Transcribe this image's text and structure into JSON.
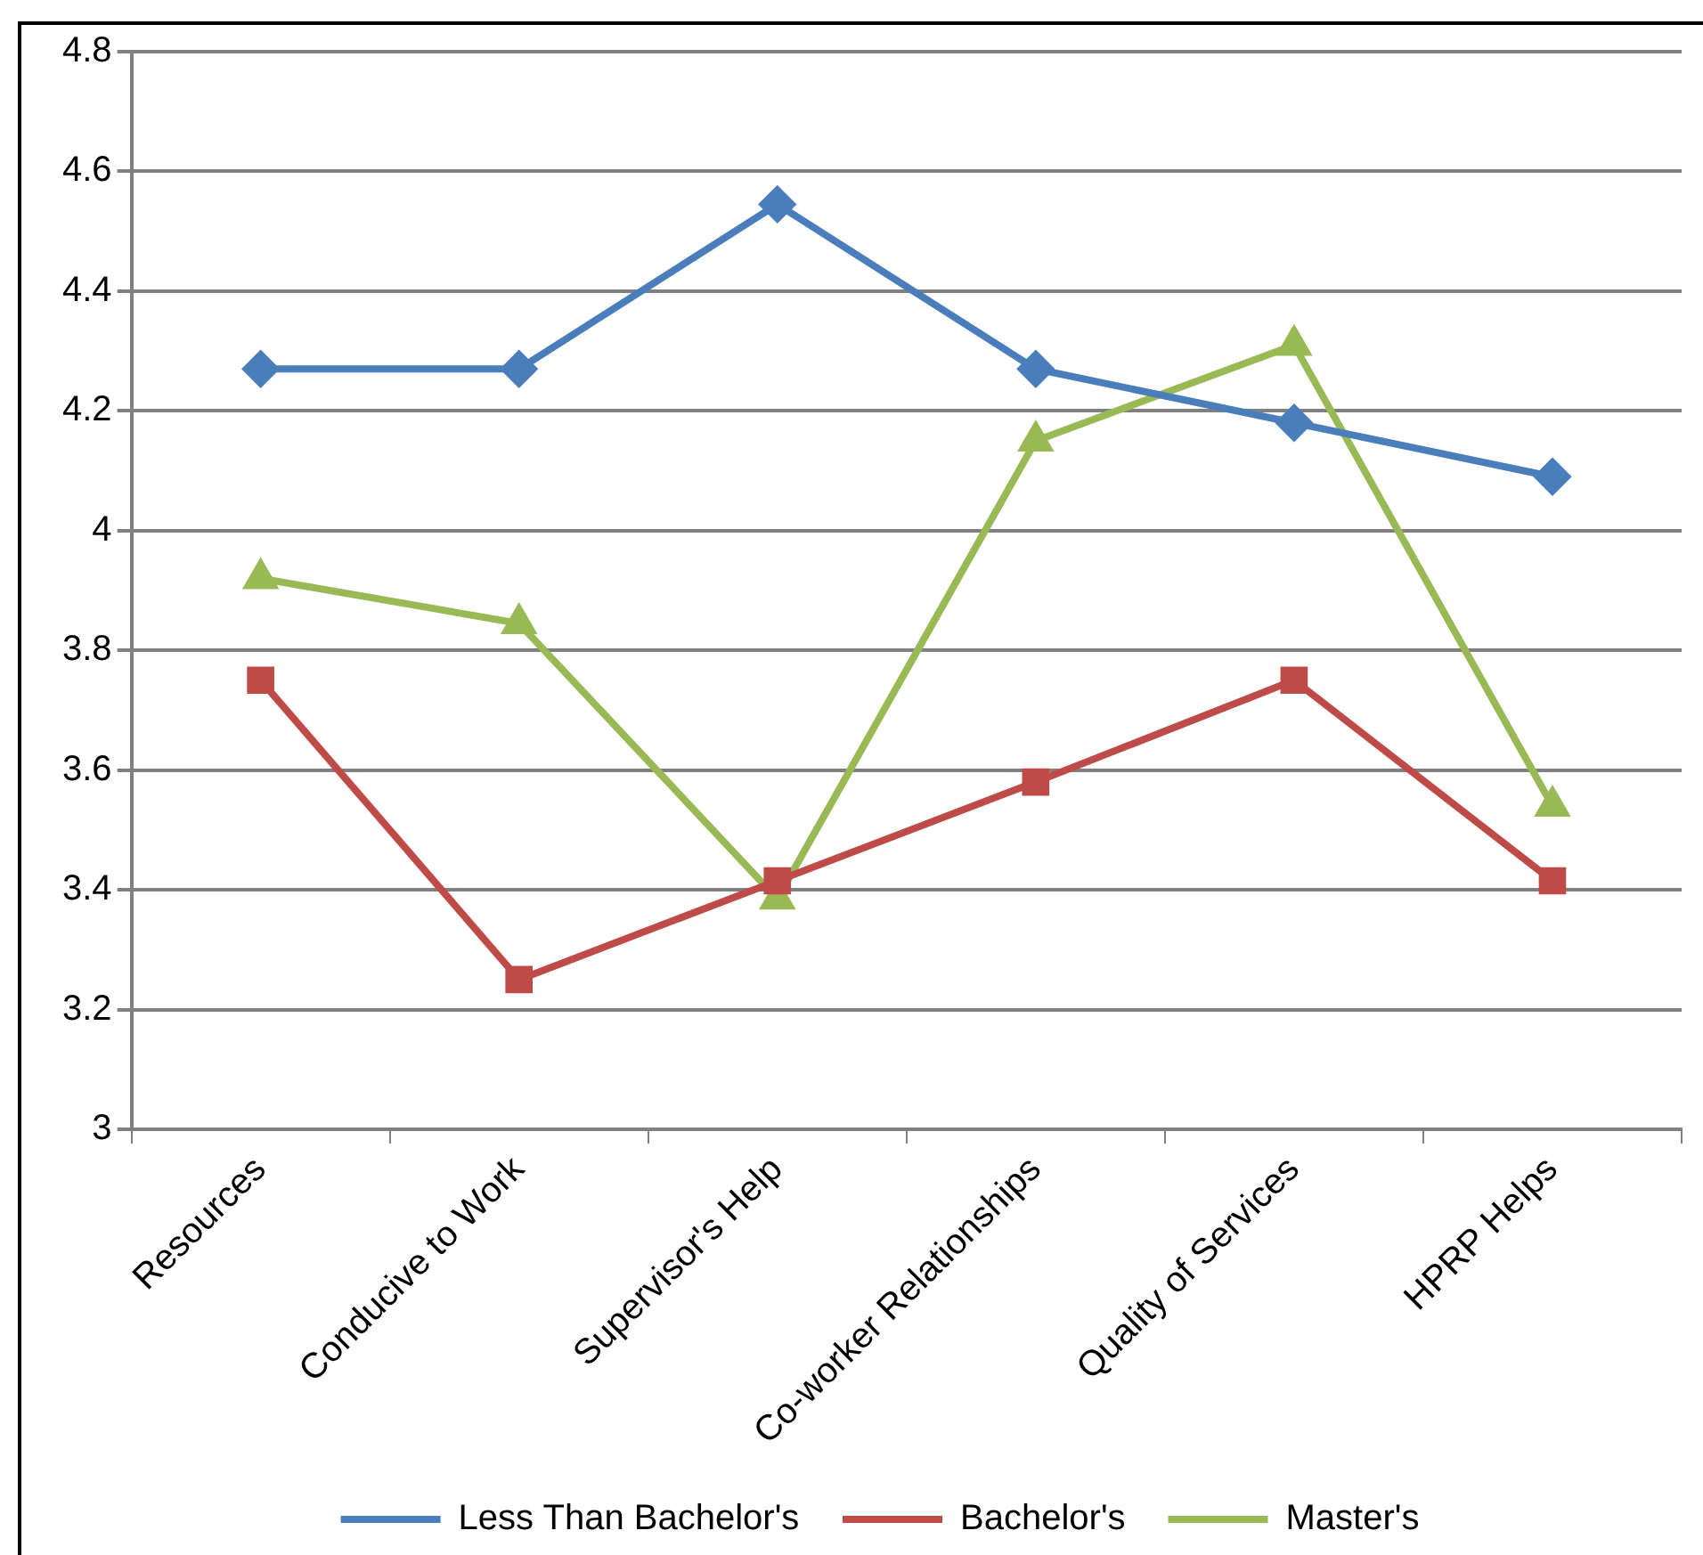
{
  "chart_data": {
    "type": "line",
    "categories": [
      "Resources",
      "Conducive to Work",
      "Supervisor's Help",
      "Co-worker Relationships",
      "Quality of Services",
      "HPRP Helps"
    ],
    "series": [
      {
        "name": "Less Than Bachelor's",
        "color": "#4a7ebb",
        "marker": "diamond",
        "values": [
          4.27,
          4.27,
          4.545,
          4.27,
          4.18,
          4.09
        ]
      },
      {
        "name": "Bachelor's",
        "color": "#be4b48",
        "marker": "square",
        "values": [
          3.75,
          3.25,
          3.415,
          3.58,
          3.75,
          3.415
        ]
      },
      {
        "name": "Master's",
        "color": "#98b954",
        "marker": "triangle",
        "values": [
          3.92,
          3.845,
          3.385,
          4.15,
          4.31,
          3.54
        ]
      }
    ],
    "ylim": [
      3,
      4.8
    ],
    "yticks": [
      3,
      3.2,
      3.4,
      3.6,
      3.8,
      4,
      4.2,
      4.4,
      4.6,
      4.8
    ],
    "grid": "y",
    "legend": "bottom",
    "line_style": "solid"
  }
}
